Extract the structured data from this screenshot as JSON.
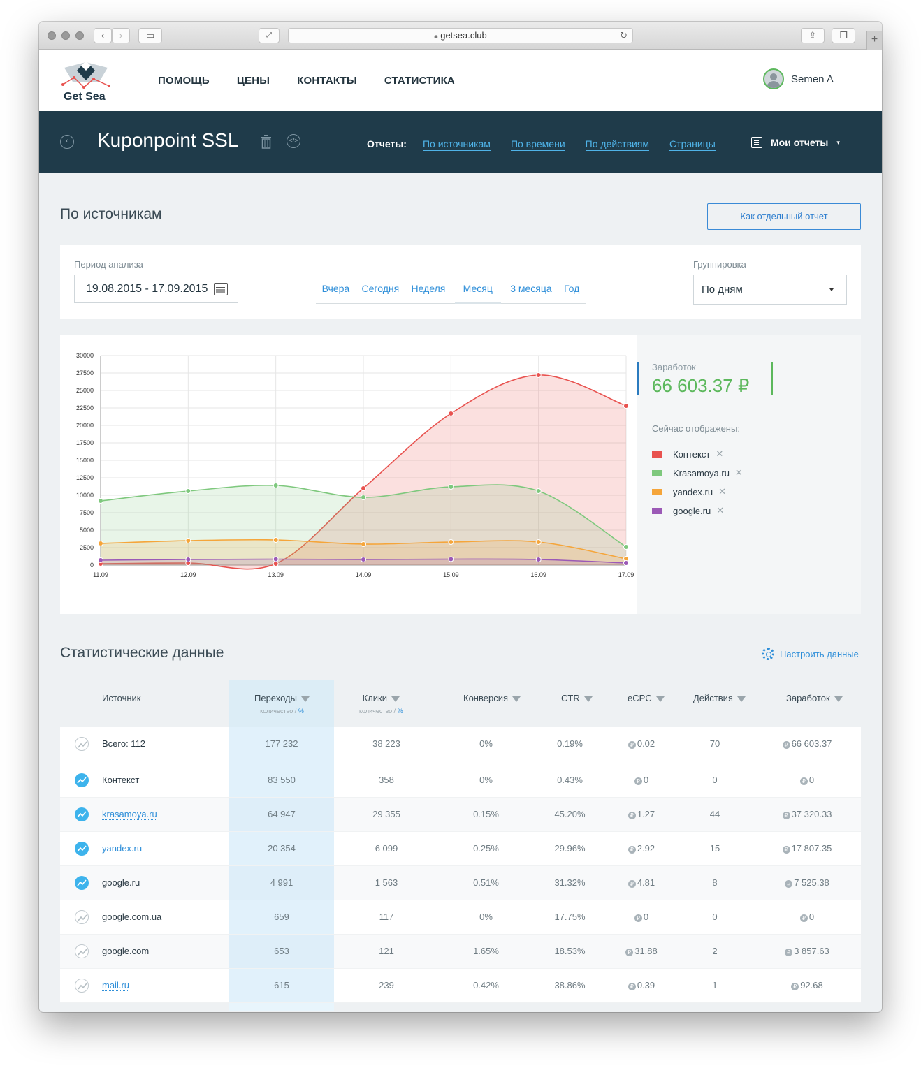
{
  "browser": {
    "url": "getsea.club"
  },
  "site": {
    "logo_text": "Get Sea",
    "nav": [
      "ПОМОЩЬ",
      "ЦЕНЫ",
      "КОНТАКТЫ",
      "СТАТИСТИКА"
    ],
    "user_name": "Semen A"
  },
  "project": {
    "title": "Kuponpoint SSL",
    "reports_label": "Отчеты:",
    "report_links": [
      "По источникам",
      "По времени",
      "По действиям",
      "Страницы"
    ],
    "my_reports": "Мои отчеты"
  },
  "page": {
    "title": "По источникам",
    "separate_report_button": "Как отдельный отчет"
  },
  "filter": {
    "period_label": "Период анализа",
    "period_value": "19.08.2015 - 17.09.2015",
    "periods": [
      "Вчера",
      "Сегодня",
      "Неделя",
      "Месяц",
      "3 месяца",
      "Год"
    ],
    "active_period": "Месяц",
    "grouping_label": "Группировка",
    "grouping_value": "По дням"
  },
  "summary": {
    "earnings_label": "Заработок",
    "earnings_value": "66 603.37 ₽",
    "now_shown_label": "Сейчас отображены:",
    "legend": [
      {
        "name": "Контекст",
        "color": "#e8524f"
      },
      {
        "name": "Krasamoya.ru",
        "color": "#7ec87d"
      },
      {
        "name": "yandex.ru",
        "color": "#f5a53a"
      },
      {
        "name": "google.ru",
        "color": "#9b59b6"
      }
    ]
  },
  "chart_data": {
    "type": "area",
    "x": [
      "11.09",
      "12.09",
      "13.09",
      "14.09",
      "15.09",
      "16.09",
      "17.09"
    ],
    "yticks": [
      0,
      2500,
      5000,
      7500,
      10000,
      12500,
      15000,
      17500,
      20000,
      22500,
      25000,
      27500,
      30000
    ],
    "ylim": [
      0,
      30000
    ],
    "grid": true,
    "series": [
      {
        "name": "Контекст",
        "color": "#e8524f",
        "values": [
          200,
          300,
          200,
          11000,
          21700,
          27200,
          22800
        ]
      },
      {
        "name": "Krasamoya.ru",
        "color": "#7ec87d",
        "values": [
          9200,
          10600,
          11400,
          9700,
          11200,
          10600,
          2600
        ]
      },
      {
        "name": "yandex.ru",
        "color": "#f5a53a",
        "values": [
          3100,
          3500,
          3600,
          3000,
          3300,
          3300,
          900
        ]
      },
      {
        "name": "google.ru",
        "color": "#9b59b6",
        "values": [
          700,
          800,
          850,
          800,
          850,
          800,
          300
        ]
      }
    ]
  },
  "stats": {
    "title": "Статистические данные",
    "configure_label": "Настроить данные",
    "columns": [
      {
        "label": "Источник"
      },
      {
        "label": "Переходы",
        "sub": "количество",
        "sub_pct": "%"
      },
      {
        "label": "Клики",
        "sub": "количество",
        "sub_pct": "%"
      },
      {
        "label": "Конверсия"
      },
      {
        "label": "CTR"
      },
      {
        "label": "eCPC"
      },
      {
        "label": "Действия"
      },
      {
        "label": "Заработок"
      }
    ],
    "total": {
      "source": "Всего: 112",
      "visits": "177 232",
      "clicks": "38 223",
      "conversion": "0%",
      "ctr": "0.19%",
      "ecpc": "0.02",
      "actions": "70",
      "earnings": "66 603.37"
    },
    "rows": [
      {
        "source": "Контекст",
        "link": false,
        "active": true,
        "visits": "83 550",
        "clicks": "358",
        "conversion": "0%",
        "ctr": "0.43%",
        "ecpc": "0",
        "actions": "0",
        "earnings": "0"
      },
      {
        "source": "krasamoya.ru",
        "link": true,
        "active": true,
        "visits": "64 947",
        "clicks": "29 355",
        "conversion": "0.15%",
        "ctr": "45.20%",
        "ecpc": "1.27",
        "actions": "44",
        "earnings": "37 320.33"
      },
      {
        "source": "yandex.ru",
        "link": true,
        "active": true,
        "visits": "20 354",
        "clicks": "6 099",
        "conversion": "0.25%",
        "ctr": "29.96%",
        "ecpc": "2.92",
        "actions": "15",
        "earnings": "17 807.35"
      },
      {
        "source": "google.ru",
        "link": false,
        "active": true,
        "visits": "4 991",
        "clicks": "1 563",
        "conversion": "0.51%",
        "ctr": "31.32%",
        "ecpc": "4.81",
        "actions": "8",
        "earnings": "7 525.38"
      },
      {
        "source": "google.com.ua",
        "link": false,
        "active": false,
        "visits": "659",
        "clicks": "117",
        "conversion": "0%",
        "ctr": "17.75%",
        "ecpc": "0",
        "actions": "0",
        "earnings": "0"
      },
      {
        "source": "google.com",
        "link": false,
        "active": false,
        "visits": "653",
        "clicks": "121",
        "conversion": "1.65%",
        "ctr": "18.53%",
        "ecpc": "31.88",
        "actions": "2",
        "earnings": "3 857.63"
      },
      {
        "source": "mail.ru",
        "link": true,
        "active": false,
        "visits": "615",
        "clicks": "239",
        "conversion": "0.42%",
        "ctr": "38.86%",
        "ecpc": "0.39",
        "actions": "1",
        "earnings": "92.68"
      }
    ]
  }
}
